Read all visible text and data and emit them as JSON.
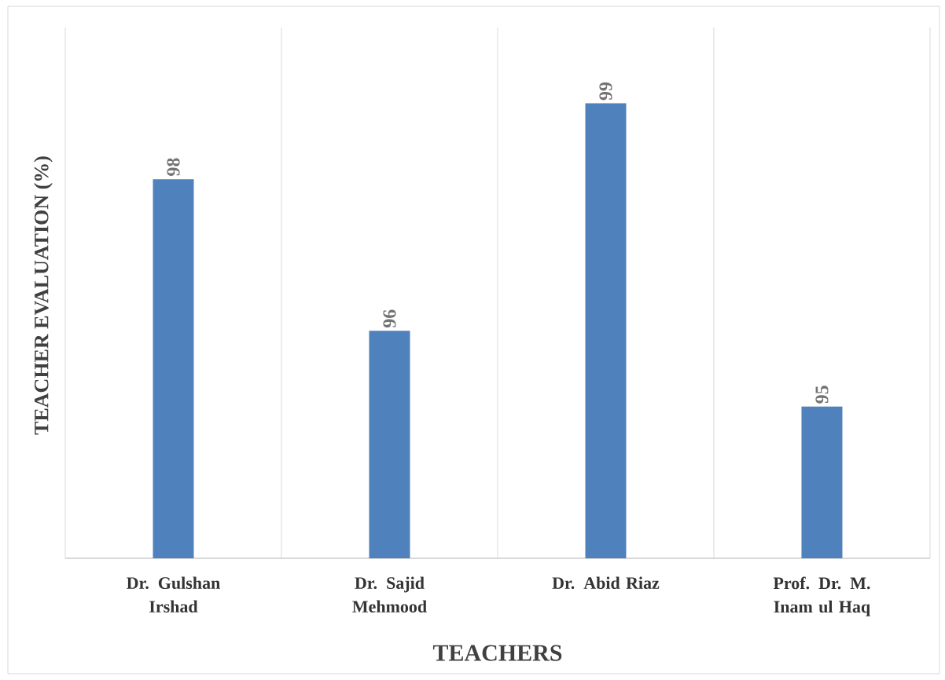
{
  "chart_data": {
    "type": "bar",
    "xlabel": "TEACHERS",
    "ylabel": "TEACHER EVALUATION (%)",
    "categories": [
      "Dr. Gulshan Irshad",
      "Dr. Sajid Mehmood",
      "Dr. Abid Riaz",
      "Prof. Dr. M. Inam ul Haq"
    ],
    "values": [
      98,
      96,
      99,
      95
    ],
    "color": "#4f81bd",
    "ylim": [
      93,
      100
    ],
    "tick_labels": "x",
    "data_labels": true,
    "grid": "x"
  }
}
